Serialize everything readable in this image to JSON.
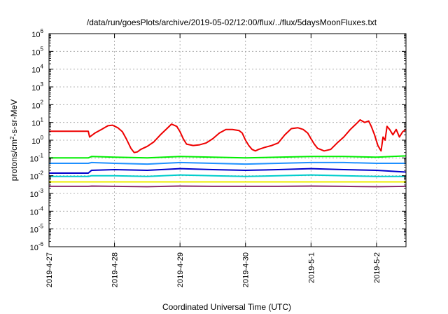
{
  "chart_data": {
    "type": "line",
    "title": "/data/run/goesPlots/archive/2019-05-02/12:00/flux/../flux/5daysMoonFluxes.txt",
    "xlabel": "Coordinated Universal Time (UTC)",
    "ylabel_prefix": "protons/cm",
    "ylabel_sup": "2",
    "ylabel_suffix": "-s-sr-MeV",
    "y_scale": "log",
    "ylim": [
      1e-06,
      1000000
    ],
    "xlim_days": [
      0,
      5.45
    ],
    "grid": true,
    "legend": "none",
    "y_ticks": [
      {
        "base": "10",
        "exp": "-6",
        "value": 1e-06
      },
      {
        "base": "10",
        "exp": "-5",
        "value": 1e-05
      },
      {
        "base": "10",
        "exp": "-4",
        "value": 0.0001
      },
      {
        "base": "10",
        "exp": "-3",
        "value": 0.001
      },
      {
        "base": "10",
        "exp": "-2",
        "value": 0.01
      },
      {
        "base": "10",
        "exp": "-1",
        "value": 0.1
      },
      {
        "base": "10",
        "exp": "0",
        "value": 1
      },
      {
        "base": "10",
        "exp": "1",
        "value": 10
      },
      {
        "base": "10",
        "exp": "2",
        "value": 100
      },
      {
        "base": "10",
        "exp": "3",
        "value": 1000
      },
      {
        "base": "10",
        "exp": "4",
        "value": 10000
      },
      {
        "base": "10",
        "exp": "5",
        "value": 100000
      },
      {
        "base": "10",
        "exp": "6",
        "value": 1000000
      }
    ],
    "x_ticks": [
      {
        "label": "2019-4-27",
        "day": 0
      },
      {
        "label": "2019-4-28",
        "day": 1
      },
      {
        "label": "2019-4-29",
        "day": 2
      },
      {
        "label": "2019-4-30",
        "day": 3
      },
      {
        "label": "2019-5-1",
        "day": 4
      },
      {
        "label": "2019-5-2",
        "day": 5
      }
    ],
    "series": [
      {
        "color": "#ee0000",
        "points": [
          [
            0,
            3.2
          ],
          [
            0.6,
            3.2
          ],
          [
            0.62,
            1.5
          ],
          [
            0.7,
            2.5
          ],
          [
            0.8,
            4
          ],
          [
            0.9,
            6.5
          ],
          [
            0.97,
            7
          ],
          [
            1.05,
            5
          ],
          [
            1.12,
            3
          ],
          [
            1.18,
            1.2
          ],
          [
            1.25,
            0.35
          ],
          [
            1.3,
            0.2
          ],
          [
            1.35,
            0.22
          ],
          [
            1.4,
            0.3
          ],
          [
            1.5,
            0.45
          ],
          [
            1.6,
            0.8
          ],
          [
            1.7,
            2
          ],
          [
            1.8,
            4.5
          ],
          [
            1.87,
            8
          ],
          [
            1.95,
            6
          ],
          [
            2.0,
            3
          ],
          [
            2.05,
            1.2
          ],
          [
            2.1,
            0.6
          ],
          [
            2.2,
            0.5
          ],
          [
            2.3,
            0.55
          ],
          [
            2.4,
            0.7
          ],
          [
            2.5,
            1.2
          ],
          [
            2.6,
            2.5
          ],
          [
            2.7,
            4
          ],
          [
            2.8,
            4
          ],
          [
            2.9,
            3.5
          ],
          [
            2.95,
            2.5
          ],
          [
            3.0,
            1
          ],
          [
            3.05,
            0.5
          ],
          [
            3.1,
            0.3
          ],
          [
            3.15,
            0.25
          ],
          [
            3.2,
            0.3
          ],
          [
            3.3,
            0.4
          ],
          [
            3.4,
            0.5
          ],
          [
            3.5,
            0.7
          ],
          [
            3.6,
            2
          ],
          [
            3.7,
            4.5
          ],
          [
            3.8,
            5
          ],
          [
            3.88,
            4
          ],
          [
            3.95,
            2.5
          ],
          [
            4.0,
            1.2
          ],
          [
            4.05,
            0.6
          ],
          [
            4.1,
            0.35
          ],
          [
            4.2,
            0.25
          ],
          [
            4.3,
            0.3
          ],
          [
            4.4,
            0.7
          ],
          [
            4.5,
            1.5
          ],
          [
            4.6,
            4
          ],
          [
            4.7,
            9
          ],
          [
            4.75,
            14
          ],
          [
            4.82,
            10
          ],
          [
            4.88,
            12
          ],
          [
            4.92,
            6
          ],
          [
            4.97,
            2
          ],
          [
            5.02,
            0.5
          ],
          [
            5.07,
            0.25
          ],
          [
            5.1,
            1.5
          ],
          [
            5.13,
            1
          ],
          [
            5.16,
            6
          ],
          [
            5.2,
            4
          ],
          [
            5.25,
            2
          ],
          [
            5.3,
            4
          ],
          [
            5.35,
            1.5
          ],
          [
            5.4,
            3
          ],
          [
            5.45,
            4
          ]
        ]
      },
      {
        "color": "#00ee00",
        "points": [
          [
            0,
            0.1
          ],
          [
            0.6,
            0.1
          ],
          [
            0.65,
            0.12
          ],
          [
            1.0,
            0.11
          ],
          [
            1.5,
            0.1
          ],
          [
            2.0,
            0.12
          ],
          [
            2.5,
            0.11
          ],
          [
            3.0,
            0.1
          ],
          [
            3.5,
            0.11
          ],
          [
            4.0,
            0.12
          ],
          [
            4.5,
            0.12
          ],
          [
            5.0,
            0.11
          ],
          [
            5.45,
            0.13
          ]
        ]
      },
      {
        "color": "#1e90ff",
        "points": [
          [
            0,
            0.05
          ],
          [
            0.6,
            0.05
          ],
          [
            0.65,
            0.055
          ],
          [
            1.0,
            0.05
          ],
          [
            1.5,
            0.045
          ],
          [
            2.0,
            0.055
          ],
          [
            2.5,
            0.05
          ],
          [
            3.0,
            0.045
          ],
          [
            3.5,
            0.05
          ],
          [
            4.0,
            0.055
          ],
          [
            4.5,
            0.055
          ],
          [
            5.0,
            0.05
          ],
          [
            5.45,
            0.05
          ]
        ]
      },
      {
        "color": "#0000cc",
        "points": [
          [
            0,
            0.014
          ],
          [
            0.6,
            0.014
          ],
          [
            0.65,
            0.02
          ],
          [
            1.0,
            0.022
          ],
          [
            1.5,
            0.02
          ],
          [
            2.0,
            0.025
          ],
          [
            2.5,
            0.022
          ],
          [
            3.0,
            0.02
          ],
          [
            3.5,
            0.022
          ],
          [
            4.0,
            0.025
          ],
          [
            4.5,
            0.022
          ],
          [
            5.0,
            0.02
          ],
          [
            5.45,
            0.016
          ]
        ]
      },
      {
        "color": "#00cdcd",
        "points": [
          [
            0,
            0.009
          ],
          [
            0.6,
            0.009
          ],
          [
            0.65,
            0.01
          ],
          [
            1.0,
            0.01
          ],
          [
            1.5,
            0.009
          ],
          [
            2.0,
            0.011
          ],
          [
            2.5,
            0.01
          ],
          [
            3.0,
            0.009
          ],
          [
            3.5,
            0.01
          ],
          [
            4.0,
            0.011
          ],
          [
            4.5,
            0.01
          ],
          [
            5.0,
            0.009
          ],
          [
            5.45,
            0.009
          ]
        ]
      },
      {
        "color": "#eeee00",
        "points": [
          [
            0,
            0.0045
          ],
          [
            0.6,
            0.0045
          ],
          [
            1.0,
            0.0045
          ],
          [
            2.0,
            0.0045
          ],
          [
            3.0,
            0.0045
          ],
          [
            4.0,
            0.0045
          ],
          [
            5.0,
            0.0045
          ],
          [
            5.45,
            0.0045
          ]
        ]
      },
      {
        "color": "#8b2b6b",
        "points": [
          [
            0,
            0.0025
          ],
          [
            0.6,
            0.0025
          ],
          [
            0.65,
            0.0026
          ],
          [
            1.0,
            0.0025
          ],
          [
            1.5,
            0.0024
          ],
          [
            2.0,
            0.0026
          ],
          [
            2.5,
            0.0025
          ],
          [
            3.0,
            0.0025
          ],
          [
            3.5,
            0.0025
          ],
          [
            4.0,
            0.0026
          ],
          [
            4.5,
            0.0025
          ],
          [
            5.0,
            0.0024
          ],
          [
            5.45,
            0.0025
          ]
        ]
      }
    ]
  }
}
